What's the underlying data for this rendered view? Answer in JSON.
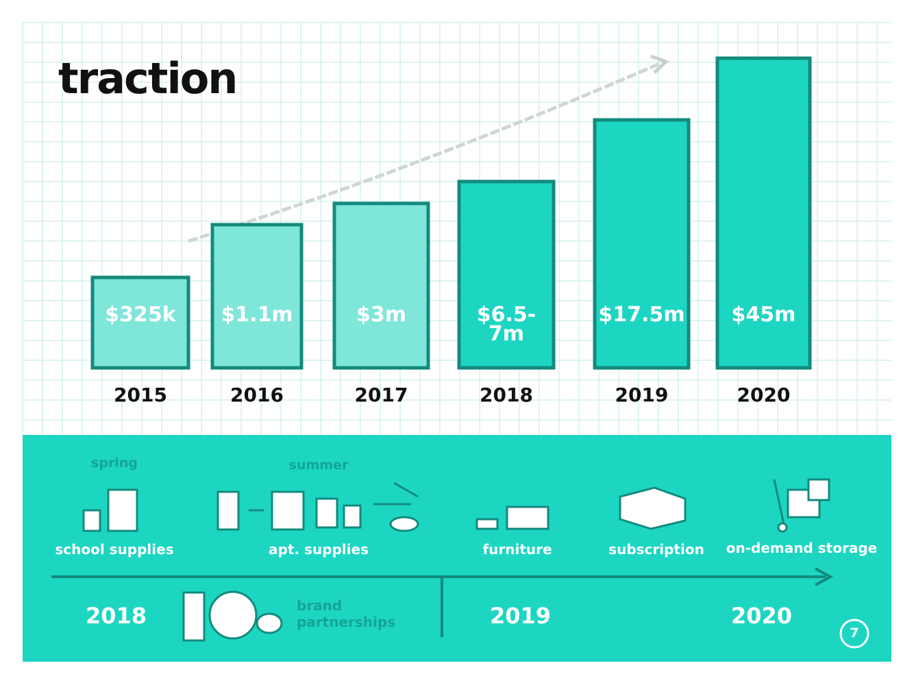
{
  "title": "traction",
  "bars": [
    {
      "label": "$325k",
      "year": "2015"
    },
    {
      "label": "$1.1m",
      "year": "2016"
    },
    {
      "label": "$3m",
      "year": "2017"
    },
    {
      "label": "$6.5-7m",
      "year": "2018"
    },
    {
      "label": "$17.5m",
      "year": "2019"
    },
    {
      "label": "$45m",
      "year": "2020"
    }
  ],
  "timeline": {
    "items": [
      {
        "season": "spring",
        "label": "school supplies"
      },
      {
        "season": "summer",
        "label": "apt. supplies"
      },
      {
        "label": "furniture"
      },
      {
        "label": "subscription"
      },
      {
        "label": "on-demand storage"
      }
    ],
    "brand": "brand partnerships",
    "years": [
      "2018",
      "2019",
      "2020"
    ]
  },
  "page_number": "7"
}
